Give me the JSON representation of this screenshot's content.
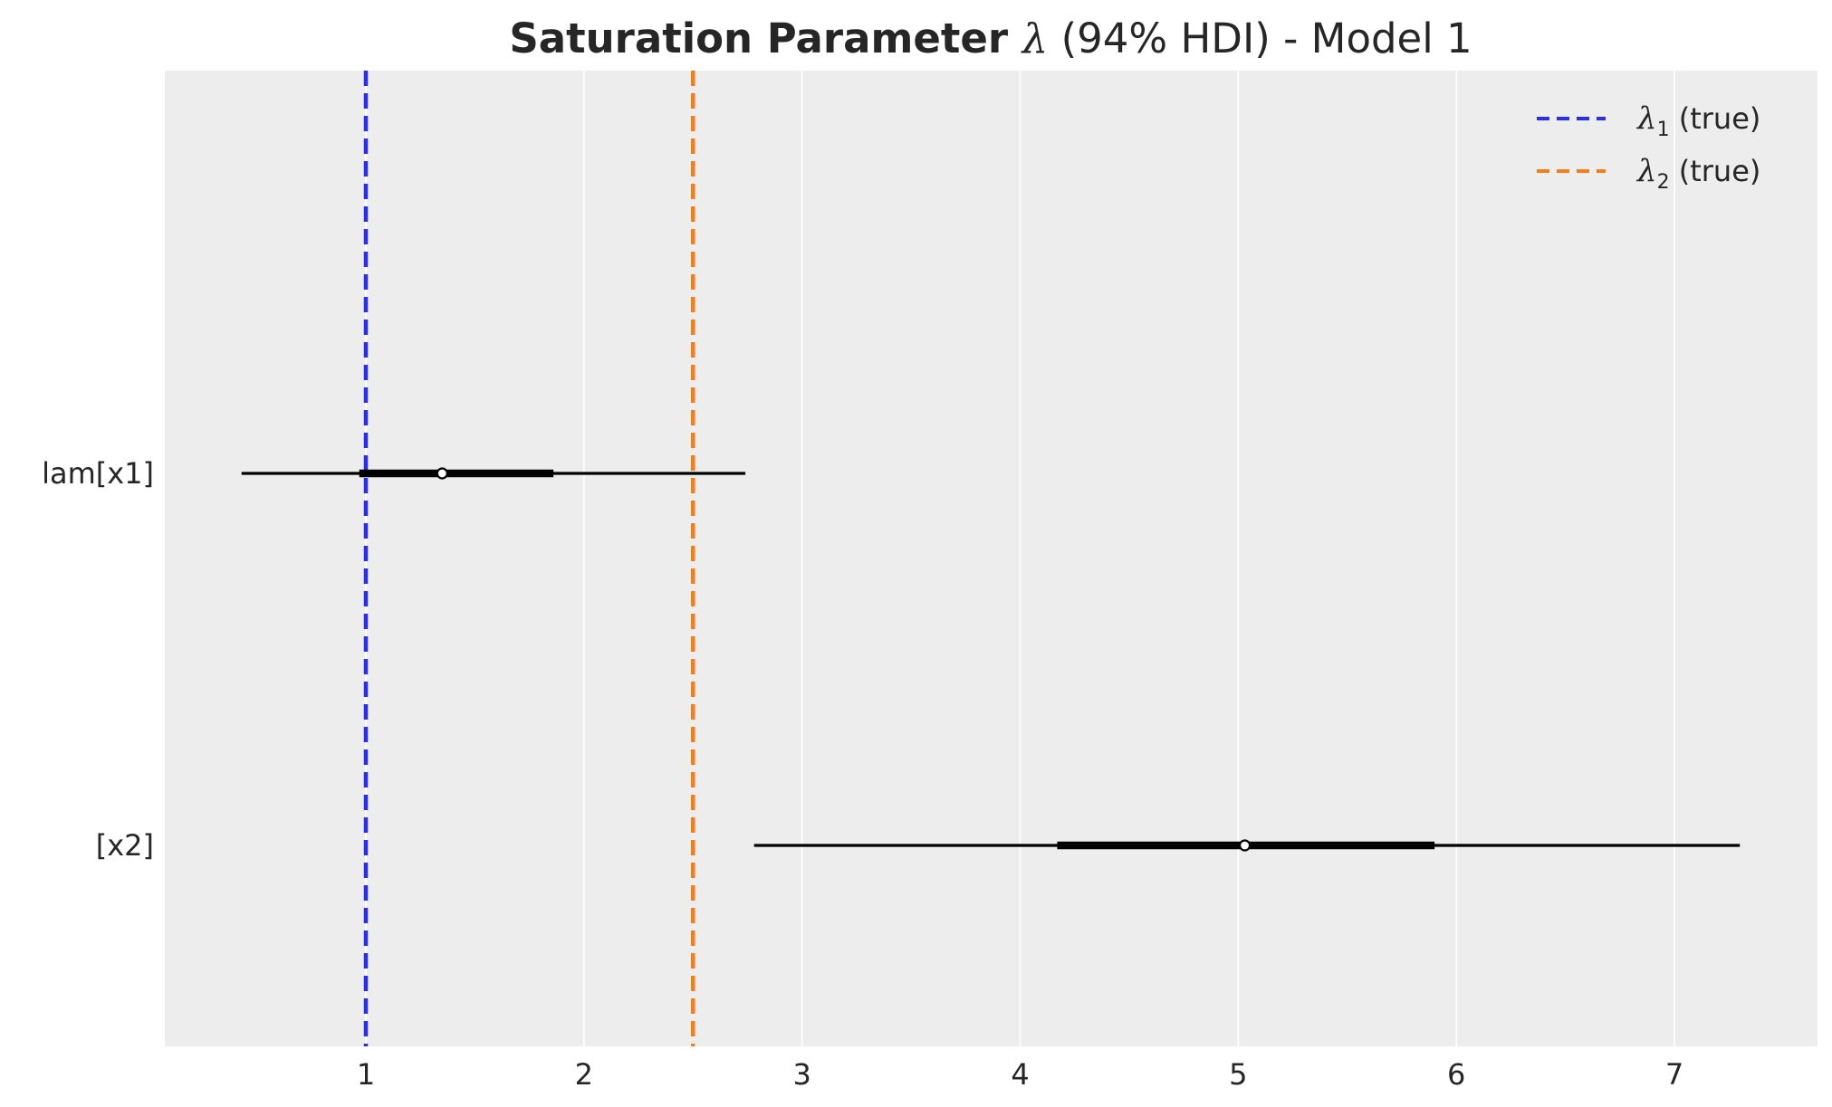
{
  "chart_data": {
    "type": "forest",
    "title": "Saturation Parameter λ (94% HDI) - Model 1",
    "title_parts": {
      "before": "Saturation Parameter ",
      "symbol": "λ",
      "after": " (94% HDI) - Model 1"
    },
    "xlim": [
      0.08,
      7.65
    ],
    "xticks": [
      1,
      2,
      3,
      4,
      5,
      6,
      7
    ],
    "grid": true,
    "legend_position": "top-right",
    "background_color": "#ededed",
    "rows": [
      {
        "label": "lam[x1]",
        "hdi_low": 0.43,
        "iqr_low": 0.97,
        "median": 1.35,
        "iqr_high": 1.86,
        "hdi_high": 2.74
      },
      {
        "label": "[x2]",
        "hdi_low": 2.78,
        "iqr_low": 4.17,
        "median": 5.03,
        "iqr_high": 5.9,
        "hdi_high": 7.3
      }
    ],
    "reference_lines": [
      {
        "name": "λ1 (true)",
        "symbol": "λ",
        "subscript": "1",
        "suffix": " (true)",
        "x": 1.0,
        "color": "#2a2eec"
      },
      {
        "name": "λ2 (true)",
        "symbol": "λ",
        "subscript": "2",
        "suffix": " (true)",
        "x": 2.5,
        "color": "#fa7c17"
      }
    ]
  }
}
